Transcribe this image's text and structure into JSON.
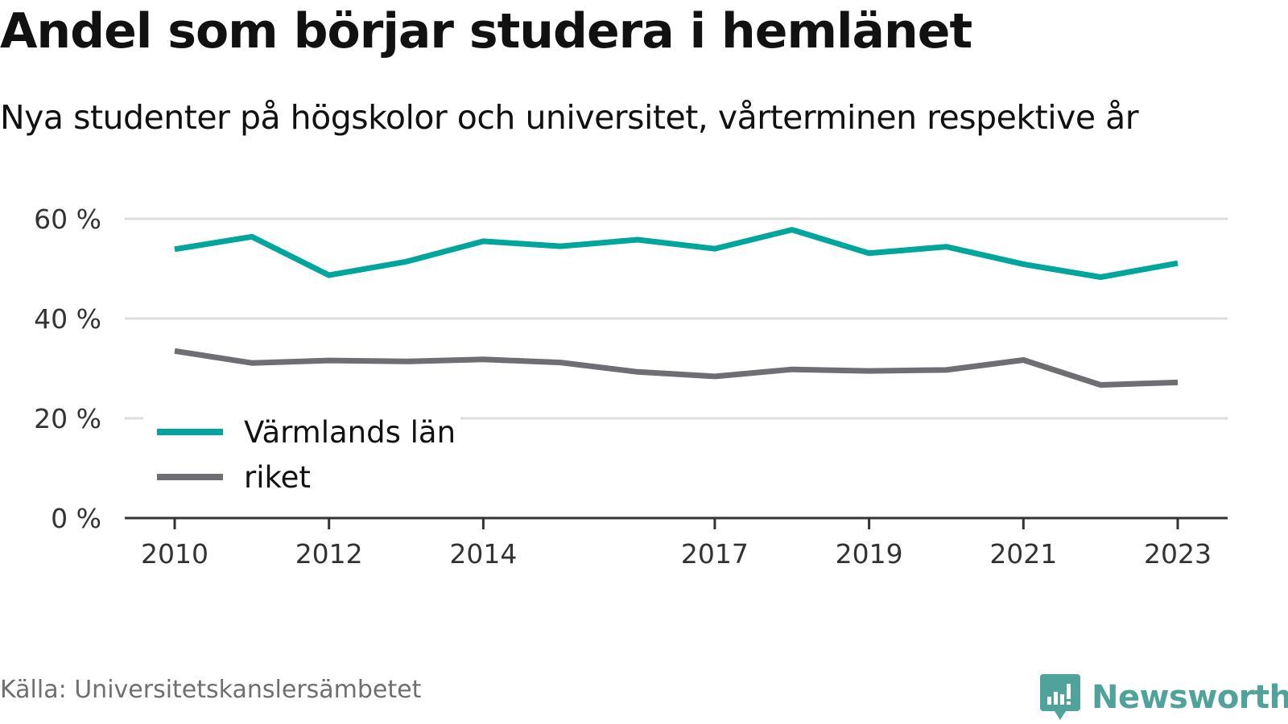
{
  "header": {
    "title": "Andel som börjar studera i hemlänet",
    "subtitle": "Nya studenter på högskolor och universitet, vårterminen respektive år"
  },
  "footer": {
    "source": "Källa: Universitetskanslersämbetet",
    "brand": "Newsworthy",
    "brand_icon": "chart-speech-bubble-icon"
  },
  "colors": {
    "varmland": "#00a59b",
    "riket": "#6e6e73",
    "grid": "#dddddd",
    "axis": "#333333",
    "brand": "#4fa39a"
  },
  "chart_data": {
    "type": "line",
    "x": [
      2010,
      2011,
      2012,
      2013,
      2014,
      2015,
      2016,
      2017,
      2018,
      2019,
      2020,
      2021,
      2022,
      2023
    ],
    "x_tick_labels": [
      "2010",
      "2012",
      "2014",
      "2017",
      "2019",
      "2021",
      "2023"
    ],
    "x_tick_values": [
      2010,
      2012,
      2014,
      2017,
      2019,
      2021,
      2023
    ],
    "y_tick_labels": [
      "0 %",
      "20 %",
      "40 %",
      "60 %"
    ],
    "y_tick_values": [
      0,
      20,
      40,
      60
    ],
    "ylim": [
      0,
      60
    ],
    "grid": true,
    "legend_position": "bottom-left",
    "series": [
      {
        "name": "Värmlands län",
        "color": "#00a59b",
        "values": [
          53.9,
          56.4,
          48.7,
          51.4,
          55.5,
          54.5,
          55.8,
          54.0,
          57.8,
          53.1,
          54.4,
          50.9,
          48.3,
          51.1
        ]
      },
      {
        "name": "riket",
        "color": "#6e6e73",
        "values": [
          33.5,
          31.1,
          31.6,
          31.4,
          31.8,
          31.2,
          29.3,
          28.4,
          29.8,
          29.5,
          29.7,
          31.7,
          26.7,
          27.2
        ]
      }
    ]
  }
}
